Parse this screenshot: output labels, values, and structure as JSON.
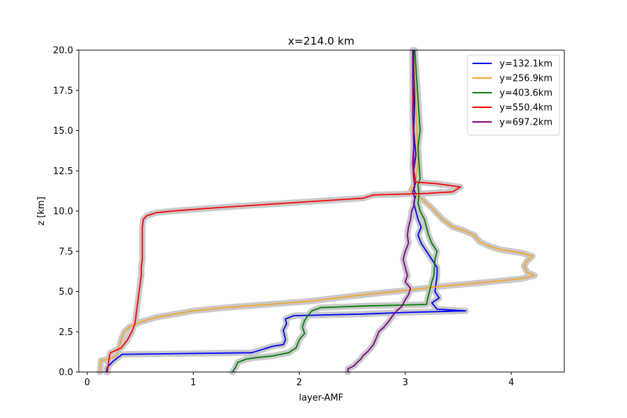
{
  "chart_data": {
    "type": "line",
    "title": "x=214.0 km",
    "xlabel": "layer-AMF",
    "ylabel": "z [km]",
    "xlim": [
      -0.08,
      4.5
    ],
    "ylim": [
      0,
      20
    ],
    "xticks": [
      0,
      1,
      2,
      3,
      4
    ],
    "yticks": [
      0.0,
      2.5,
      5.0,
      7.5,
      10.0,
      12.5,
      15.0,
      17.5,
      20.0
    ],
    "xtick_labels": [
      "0",
      "1",
      "2",
      "3",
      "4"
    ],
    "ytick_labels": [
      "0.0",
      "2.5",
      "5.0",
      "7.5",
      "10.0",
      "12.5",
      "15.0",
      "17.5",
      "20.0"
    ],
    "grid": false,
    "legend_position": "top-right",
    "uncertainty_band_color": "#c9c9cc",
    "series": [
      {
        "name": "y=132.1km",
        "color": "#0000ff",
        "points": [
          [
            0.18,
            0.0
          ],
          [
            0.19,
            0.3
          ],
          [
            0.25,
            0.7
          ],
          [
            0.33,
            1.1
          ],
          [
            1.55,
            1.2
          ],
          [
            1.65,
            1.4
          ],
          [
            1.75,
            1.6
          ],
          [
            1.85,
            1.7
          ],
          [
            1.87,
            2.0
          ],
          [
            1.85,
            2.6
          ],
          [
            1.88,
            3.0
          ],
          [
            1.87,
            3.3
          ],
          [
            1.95,
            3.5
          ],
          [
            2.6,
            3.6
          ],
          [
            3.0,
            3.7
          ],
          [
            3.57,
            3.8
          ],
          [
            3.3,
            3.9
          ],
          [
            3.25,
            4.3
          ],
          [
            3.32,
            4.6
          ],
          [
            3.28,
            5.0
          ],
          [
            3.3,
            6.0
          ],
          [
            3.3,
            6.5
          ],
          [
            3.25,
            7.0
          ],
          [
            3.2,
            7.5
          ],
          [
            3.15,
            8.0
          ],
          [
            3.12,
            8.5
          ],
          [
            3.15,
            9.0
          ],
          [
            3.12,
            9.5
          ],
          [
            3.1,
            10.0
          ],
          [
            3.08,
            10.5
          ],
          [
            3.1,
            11.0
          ],
          [
            3.08,
            11.4
          ],
          [
            3.1,
            11.8
          ],
          [
            3.08,
            12.5
          ],
          [
            3.1,
            13.5
          ],
          [
            3.08,
            15.0
          ],
          [
            3.09,
            17.0
          ],
          [
            3.08,
            19.0
          ],
          [
            3.08,
            20.0
          ]
        ]
      },
      {
        "name": "y=256.9km",
        "color": "#f5a623",
        "points": [
          [
            0.12,
            0.0
          ],
          [
            0.13,
            0.7
          ],
          [
            0.2,
            0.8
          ],
          [
            0.28,
            1.0
          ],
          [
            0.3,
            1.5
          ],
          [
            0.32,
            2.0
          ],
          [
            0.35,
            2.5
          ],
          [
            0.4,
            2.8
          ],
          [
            0.5,
            3.1
          ],
          [
            0.65,
            3.4
          ],
          [
            1.0,
            3.8
          ],
          [
            1.3,
            4.0
          ],
          [
            2.1,
            4.4
          ],
          [
            2.6,
            4.8
          ],
          [
            2.9,
            5.0
          ],
          [
            3.3,
            5.3
          ],
          [
            3.8,
            5.6
          ],
          [
            4.1,
            5.8
          ],
          [
            4.22,
            6.0
          ],
          [
            4.15,
            6.2
          ],
          [
            4.12,
            6.6
          ],
          [
            4.15,
            6.9
          ],
          [
            4.2,
            7.2
          ],
          [
            4.1,
            7.4
          ],
          [
            3.9,
            7.6
          ],
          [
            3.8,
            7.8
          ],
          [
            3.7,
            8.1
          ],
          [
            3.65,
            8.5
          ],
          [
            3.55,
            8.8
          ],
          [
            3.45,
            9.0
          ],
          [
            3.35,
            9.5
          ],
          [
            3.25,
            10.2
          ],
          [
            3.15,
            10.8
          ],
          [
            3.05,
            11.2
          ],
          [
            3.08,
            11.6
          ],
          [
            3.1,
            12.0
          ],
          [
            3.12,
            13.0
          ],
          [
            3.11,
            15.0
          ],
          [
            3.1,
            17.0
          ],
          [
            3.09,
            19.0
          ],
          [
            3.09,
            20.0
          ]
        ]
      },
      {
        "name": "y=403.6km",
        "color": "#008000",
        "points": [
          [
            1.37,
            0.0
          ],
          [
            1.4,
            0.3
          ],
          [
            1.42,
            0.6
          ],
          [
            1.5,
            0.8
          ],
          [
            1.6,
            0.9
          ],
          [
            1.75,
            1.0
          ],
          [
            1.9,
            1.2
          ],
          [
            1.97,
            1.5
          ],
          [
            2.0,
            2.0
          ],
          [
            2.05,
            2.4
          ],
          [
            2.03,
            2.8
          ],
          [
            2.05,
            3.2
          ],
          [
            2.08,
            3.5
          ],
          [
            2.12,
            3.8
          ],
          [
            2.2,
            4.0
          ],
          [
            2.6,
            4.1
          ],
          [
            3.2,
            4.2
          ],
          [
            3.22,
            4.8
          ],
          [
            3.24,
            5.3
          ],
          [
            3.25,
            5.6
          ],
          [
            3.27,
            6.0
          ],
          [
            3.28,
            7.0
          ],
          [
            3.3,
            7.5
          ],
          [
            3.25,
            8.0
          ],
          [
            3.22,
            8.5
          ],
          [
            3.2,
            9.0
          ],
          [
            3.18,
            9.5
          ],
          [
            3.14,
            10.0
          ],
          [
            3.12,
            10.5
          ],
          [
            3.13,
            11.0
          ],
          [
            3.12,
            11.6
          ],
          [
            3.14,
            12.0
          ],
          [
            3.13,
            13.0
          ],
          [
            3.12,
            14.0
          ],
          [
            3.14,
            15.0
          ],
          [
            3.13,
            16.0
          ],
          [
            3.12,
            17.0
          ],
          [
            3.11,
            18.0
          ],
          [
            3.1,
            19.0
          ],
          [
            3.09,
            20.0
          ]
        ]
      },
      {
        "name": "y=550.4km",
        "color": "#ff0000",
        "points": [
          [
            0.19,
            0.0
          ],
          [
            0.2,
            0.5
          ],
          [
            0.21,
            1.0
          ],
          [
            0.22,
            1.2
          ],
          [
            0.32,
            1.5
          ],
          [
            0.38,
            2.0
          ],
          [
            0.42,
            2.5
          ],
          [
            0.45,
            3.0
          ],
          [
            0.46,
            3.5
          ],
          [
            0.47,
            4.0
          ],
          [
            0.48,
            4.5
          ],
          [
            0.49,
            5.0
          ],
          [
            0.5,
            5.5
          ],
          [
            0.51,
            6.0
          ],
          [
            0.51,
            6.5
          ],
          [
            0.52,
            7.0
          ],
          [
            0.52,
            7.5
          ],
          [
            0.52,
            8.0
          ],
          [
            0.52,
            8.5
          ],
          [
            0.52,
            9.0
          ],
          [
            0.53,
            9.5
          ],
          [
            0.56,
            9.7
          ],
          [
            0.65,
            9.9
          ],
          [
            0.8,
            10.0
          ],
          [
            1.2,
            10.2
          ],
          [
            1.9,
            10.5
          ],
          [
            2.6,
            10.8
          ],
          [
            2.7,
            11.0
          ],
          [
            3.2,
            11.1
          ],
          [
            3.45,
            11.2
          ],
          [
            3.52,
            11.5
          ],
          [
            3.3,
            11.7
          ],
          [
            3.1,
            11.8
          ],
          [
            3.08,
            12.5
          ],
          [
            3.08,
            14.0
          ],
          [
            3.07,
            16.0
          ],
          [
            3.07,
            18.0
          ],
          [
            3.07,
            20.0
          ]
        ]
      },
      {
        "name": "y=697.2km",
        "color": "#800080",
        "points": [
          [
            2.46,
            0.0
          ],
          [
            2.46,
            0.2
          ],
          [
            2.52,
            0.4
          ],
          [
            2.53,
            0.5
          ],
          [
            2.58,
            0.8
          ],
          [
            2.6,
            1.0
          ],
          [
            2.65,
            1.3
          ],
          [
            2.7,
            1.7
          ],
          [
            2.72,
            2.0
          ],
          [
            2.75,
            2.5
          ],
          [
            2.8,
            2.8
          ],
          [
            2.85,
            3.2
          ],
          [
            2.88,
            3.5
          ],
          [
            2.92,
            3.8
          ],
          [
            2.97,
            4.1
          ],
          [
            3.0,
            4.5
          ],
          [
            3.03,
            4.8
          ],
          [
            3.05,
            5.2
          ],
          [
            3.0,
            5.6
          ],
          [
            3.02,
            6.0
          ],
          [
            3.0,
            6.5
          ],
          [
            2.98,
            7.0
          ],
          [
            3.0,
            7.5
          ],
          [
            3.03,
            8.0
          ],
          [
            3.02,
            8.5
          ],
          [
            3.03,
            9.0
          ],
          [
            3.05,
            9.5
          ],
          [
            3.06,
            10.0
          ],
          [
            3.08,
            10.3
          ],
          [
            3.09,
            10.8
          ],
          [
            3.07,
            11.2
          ],
          [
            3.09,
            11.5
          ],
          [
            3.08,
            12.0
          ],
          [
            3.07,
            13.0
          ],
          [
            3.08,
            14.0
          ],
          [
            3.08,
            15.0
          ],
          [
            3.07,
            16.0
          ],
          [
            3.08,
            17.0
          ],
          [
            3.07,
            18.0
          ],
          [
            3.07,
            19.0
          ],
          [
            3.07,
            20.0
          ]
        ]
      }
    ]
  }
}
